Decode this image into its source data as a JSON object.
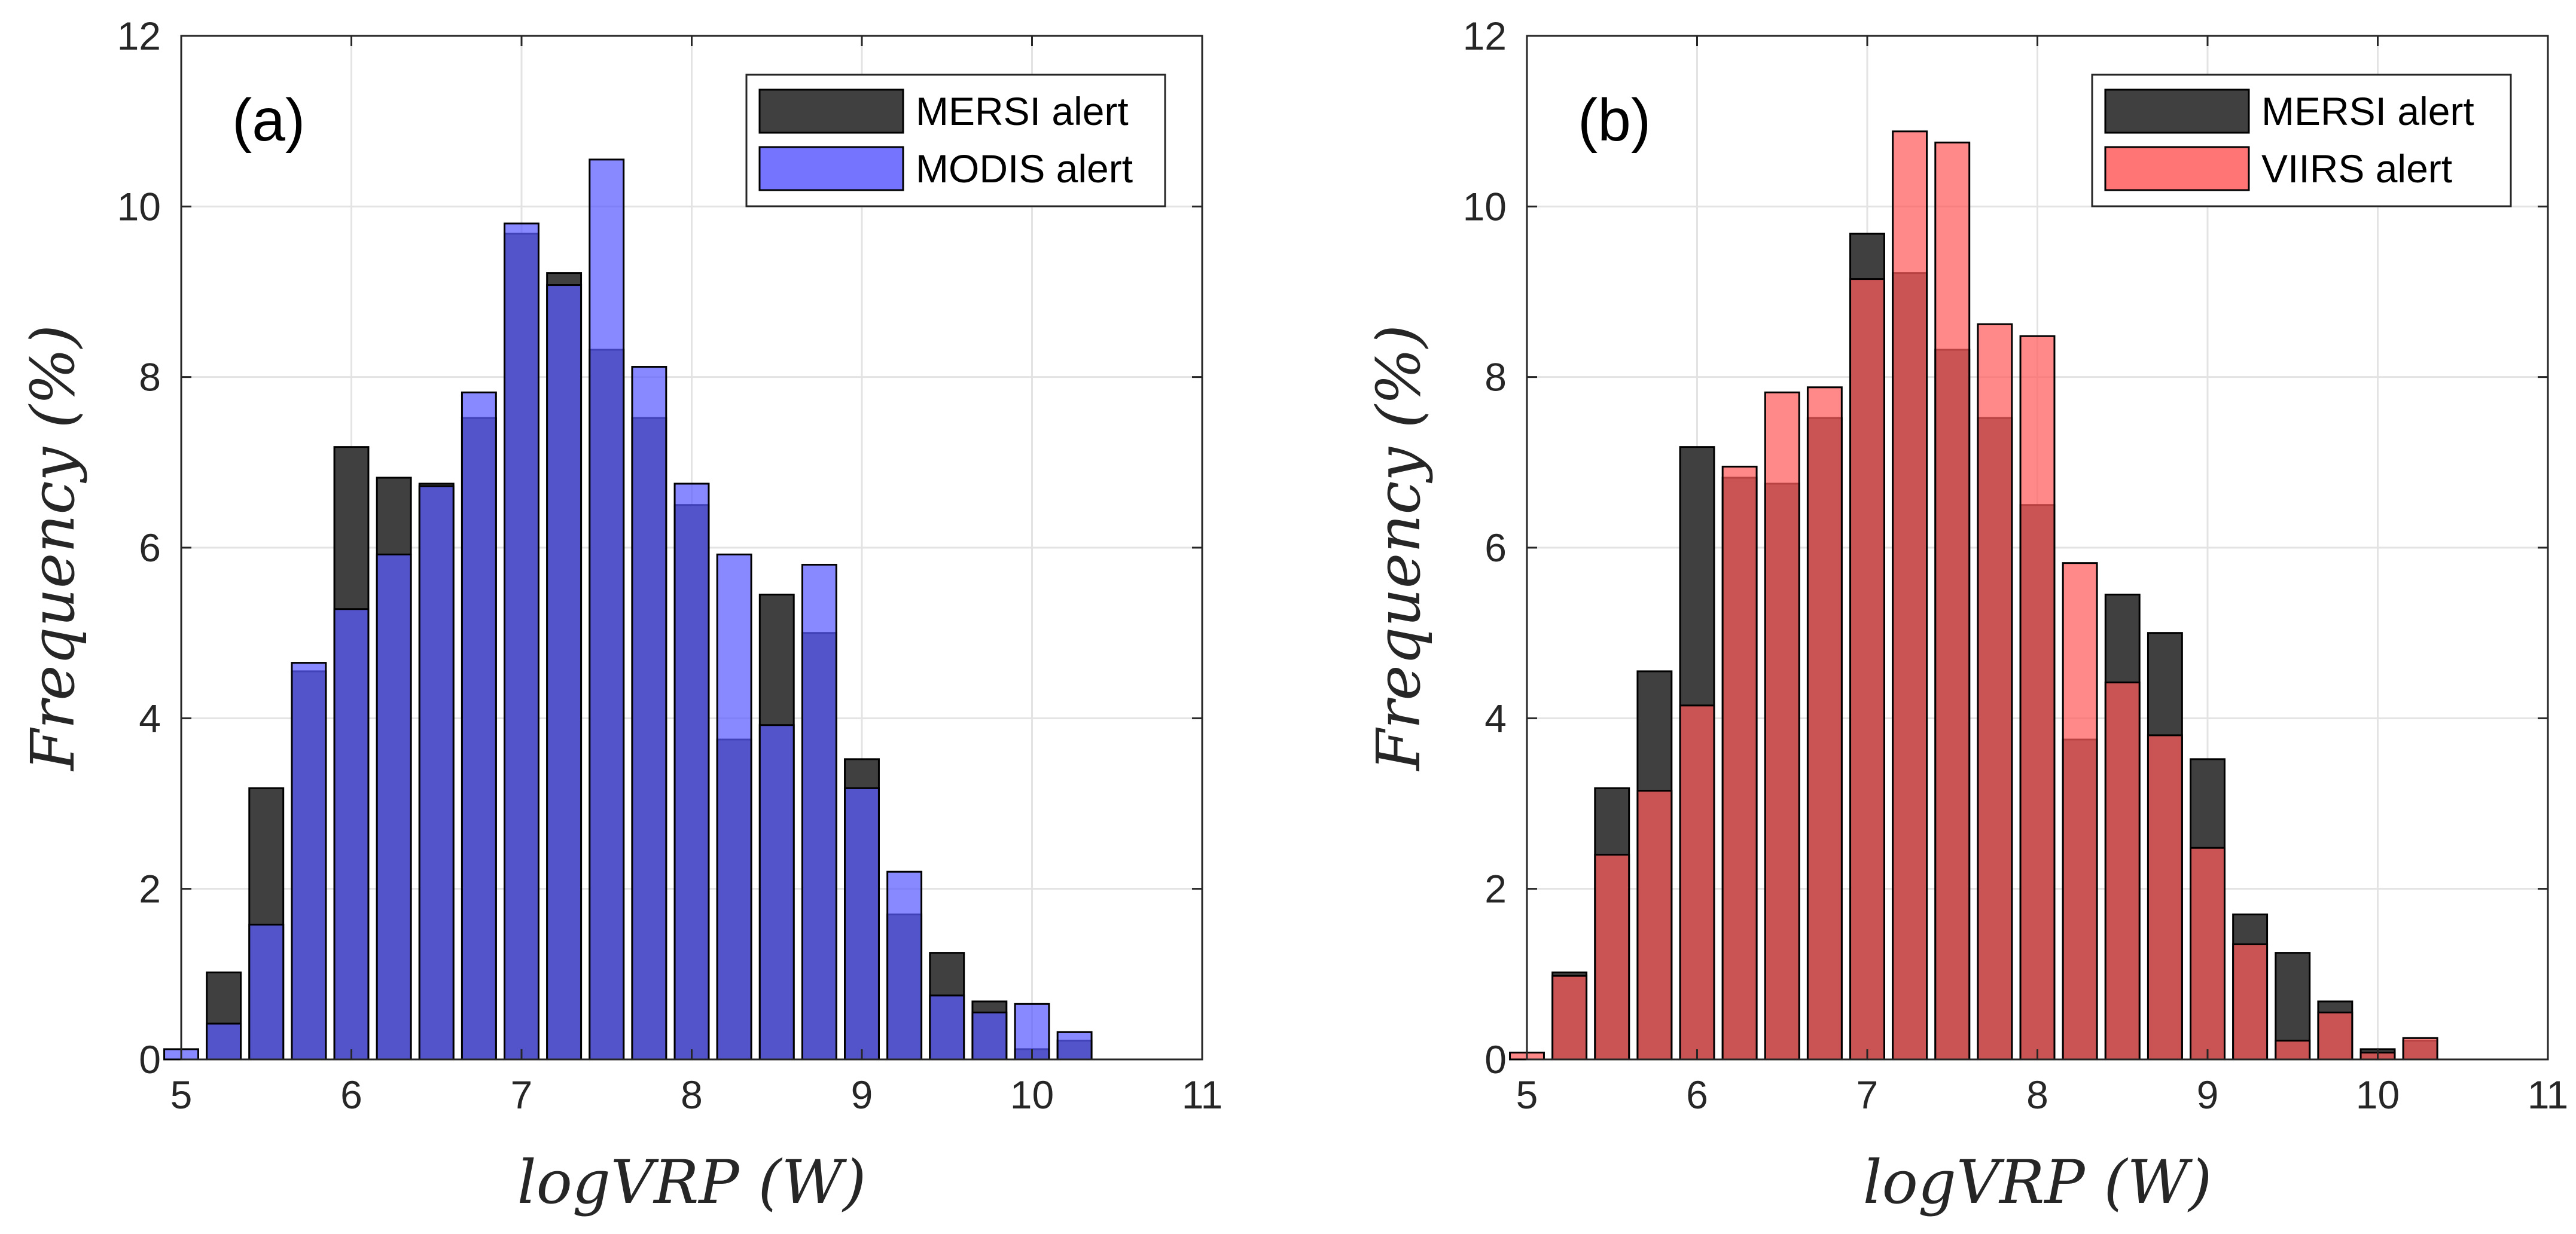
{
  "chart_data": [
    {
      "type": "bar",
      "panel_label": "(a)",
      "xlabel": "logVRP (W)",
      "ylabel": "Frequency (%)",
      "xlim": [
        5,
        11
      ],
      "ylim": [
        0,
        12
      ],
      "xticks": [
        "5",
        "6",
        "7",
        "8",
        "9",
        "10",
        "11"
      ],
      "yticks": [
        "0",
        "2",
        "4",
        "6",
        "8",
        "10",
        "12"
      ],
      "grid": true,
      "legend_position": "top-right",
      "bin_width": 0.25,
      "x": [
        5.0,
        5.25,
        5.5,
        5.75,
        6.0,
        6.25,
        6.5,
        6.75,
        7.0,
        7.25,
        7.5,
        7.75,
        8.0,
        8.25,
        8.5,
        8.75,
        9.0,
        9.25,
        9.5,
        9.75,
        10.0,
        10.25
      ],
      "series": [
        {
          "name": "MERSI alert",
          "color": "#404040",
          "values": [
            0,
            1.02,
            3.18,
            4.55,
            7.18,
            6.82,
            6.75,
            7.52,
            9.68,
            9.22,
            8.32,
            7.52,
            6.5,
            3.75,
            5.45,
            5.0,
            3.52,
            1.7,
            1.25,
            0.68,
            0.12,
            0.22
          ]
        },
        {
          "name": "MODIS alert",
          "color": "#5c5cff",
          "values": [
            0.12,
            0.42,
            1.58,
            4.65,
            5.28,
            5.92,
            6.72,
            7.82,
            9.8,
            9.08,
            10.55,
            8.12,
            6.75,
            5.92,
            3.92,
            5.8,
            3.18,
            2.2,
            0.75,
            0.55,
            0.65,
            0.32
          ]
        }
      ]
    },
    {
      "type": "bar",
      "panel_label": "(b)",
      "xlabel": "logVRP (W)",
      "ylabel": "Frequency (%)",
      "xlim": [
        5,
        11
      ],
      "ylim": [
        0,
        12
      ],
      "xticks": [
        "5",
        "6",
        "7",
        "8",
        "9",
        "10",
        "11"
      ],
      "yticks": [
        "0",
        "2",
        "4",
        "6",
        "8",
        "10",
        "12"
      ],
      "grid": true,
      "legend_position": "top-right",
      "bin_width": 0.25,
      "x": [
        5.0,
        5.25,
        5.5,
        5.75,
        6.0,
        6.25,
        6.5,
        6.75,
        7.0,
        7.25,
        7.5,
        7.75,
        8.0,
        8.25,
        8.5,
        8.75,
        9.0,
        9.25,
        9.5,
        9.75,
        10.0,
        10.25
      ],
      "series": [
        {
          "name": "MERSI alert",
          "color": "#404040",
          "values": [
            0,
            1.02,
            3.18,
            4.55,
            7.18,
            6.82,
            6.75,
            7.52,
            9.68,
            9.22,
            8.32,
            7.52,
            6.5,
            3.75,
            5.45,
            5.0,
            3.52,
            1.7,
            1.25,
            0.68,
            0.12,
            0.22
          ]
        },
        {
          "name": "VIIRS alert",
          "color": "#ff5c5c",
          "values": [
            0.08,
            0.98,
            2.4,
            3.15,
            4.15,
            6.95,
            7.82,
            7.88,
            9.15,
            10.88,
            10.75,
            8.62,
            8.48,
            5.82,
            4.42,
            3.8,
            2.48,
            1.35,
            0.22,
            0.55,
            0.08,
            0.25
          ]
        }
      ]
    }
  ]
}
